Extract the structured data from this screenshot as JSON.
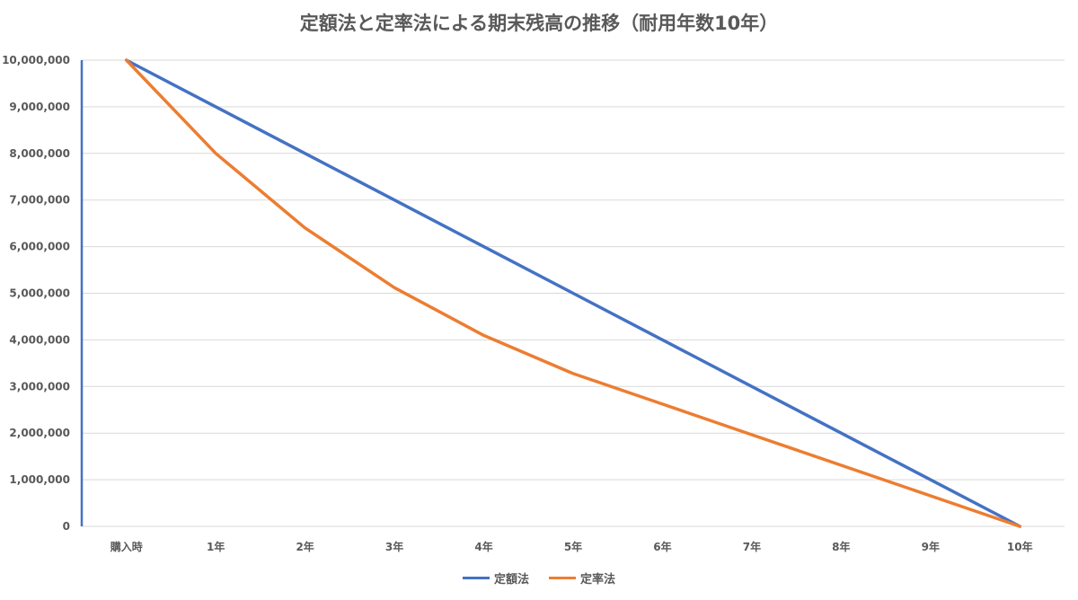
{
  "chart_data": {
    "type": "line",
    "title": "定額法と定率法による期末残高の推移（耐用年数10年）",
    "categories": [
      "購入時",
      "1年",
      "2年",
      "3年",
      "4年",
      "5年",
      "6年",
      "7年",
      "8年",
      "9年",
      "10年"
    ],
    "series": [
      {
        "name": "定額法",
        "color": "#4472C4",
        "values": [
          10000000,
          9000000,
          8000000,
          7000000,
          6000000,
          5000000,
          4000000,
          3000000,
          2000000,
          1000000,
          0
        ]
      },
      {
        "name": "定率法",
        "color": "#ED7D31",
        "values": [
          10000000,
          8000000,
          6400000,
          5120000,
          4096000,
          3276800,
          2621440,
          1966080,
          1310720,
          655360,
          0
        ]
      }
    ],
    "yticks": [
      "0",
      "1,000,000",
      "2,000,000",
      "3,000,000",
      "4,000,000",
      "5,000,000",
      "6,000,000",
      "7,000,000",
      "8,000,000",
      "9,000,000",
      "10,000,000"
    ],
    "ylim": [
      0,
      10000000
    ],
    "grid": true,
    "legend_position": "bottom"
  }
}
